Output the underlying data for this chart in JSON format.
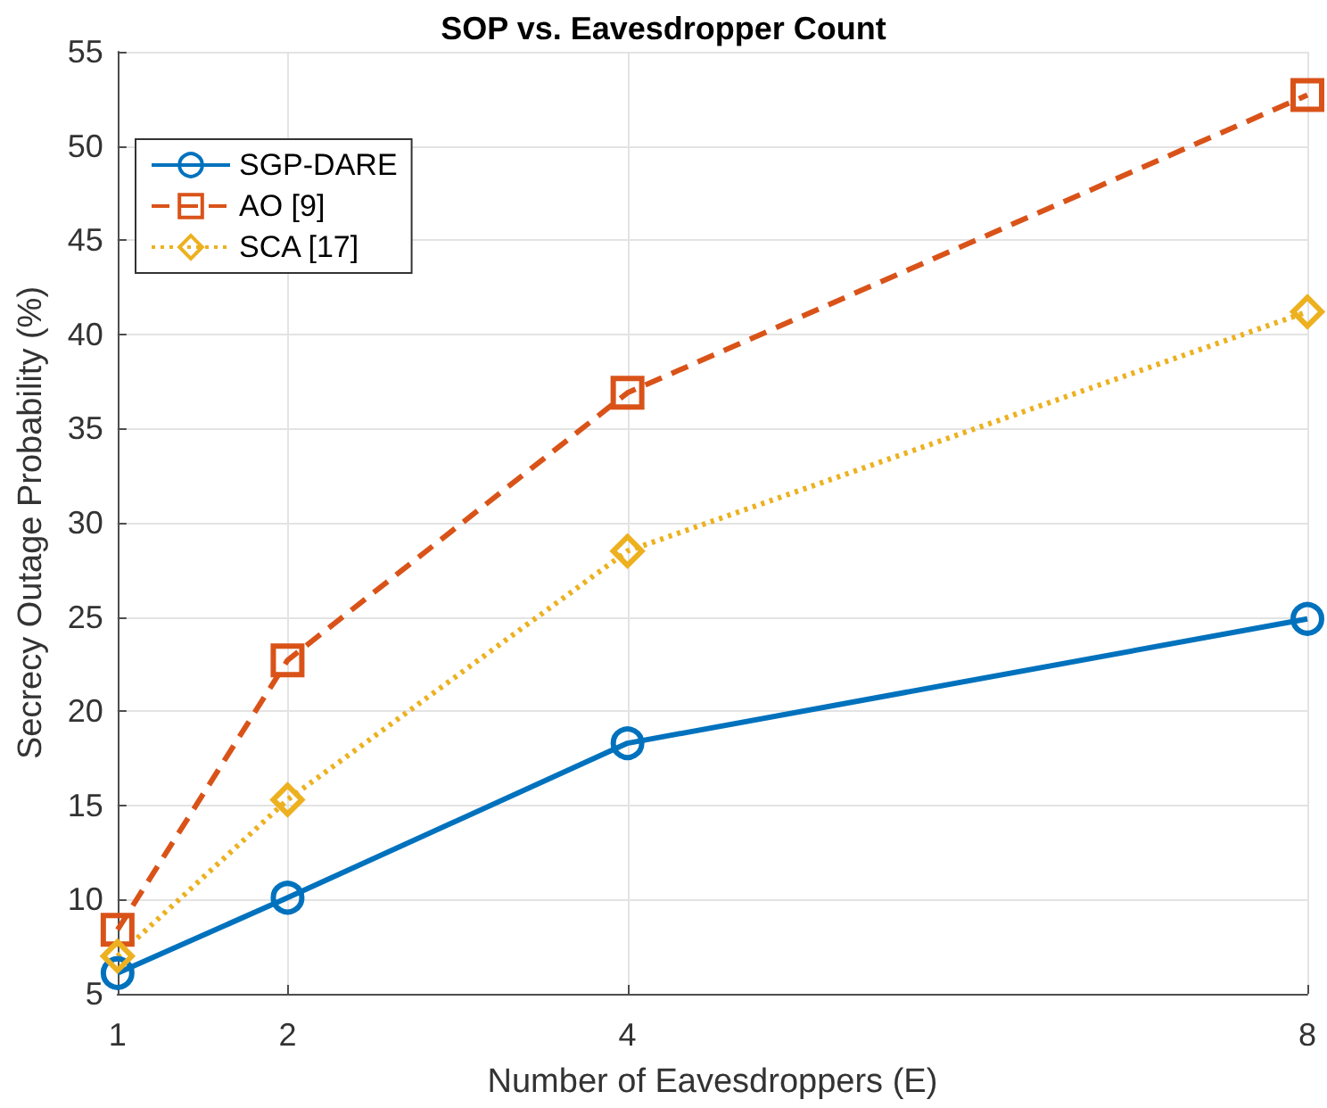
{
  "chart_data": {
    "type": "line",
    "title": "SOP vs. Eavesdropper Count",
    "xlabel": "Number of Eavesdroppers (E)",
    "ylabel": "Secrecy Outage Probability (%)",
    "x": [
      1,
      2,
      4,
      8
    ],
    "xlim": [
      1,
      8
    ],
    "xticks": [
      1,
      2,
      4,
      8
    ],
    "ylim": [
      5,
      55
    ],
    "yticks": [
      5,
      10,
      15,
      20,
      25,
      30,
      35,
      40,
      45,
      50,
      55
    ],
    "grid": true,
    "legend": "top left",
    "series": [
      {
        "name": "SGP-DARE",
        "color": "#0072bd",
        "values": [
          6.1,
          10.1,
          18.3,
          24.9
        ],
        "marker": "circle",
        "line_style": "solid"
      },
      {
        "name": "AO [9]",
        "color": "#d95319",
        "values": [
          8.4,
          22.7,
          36.9,
          52.7
        ],
        "marker": "square",
        "line_style": "dashed"
      },
      {
        "name": "SCA [17]",
        "color": "#edb120",
        "values": [
          7.0,
          15.3,
          28.5,
          41.2
        ],
        "marker": "diamond",
        "line_style": "dotted"
      }
    ]
  }
}
